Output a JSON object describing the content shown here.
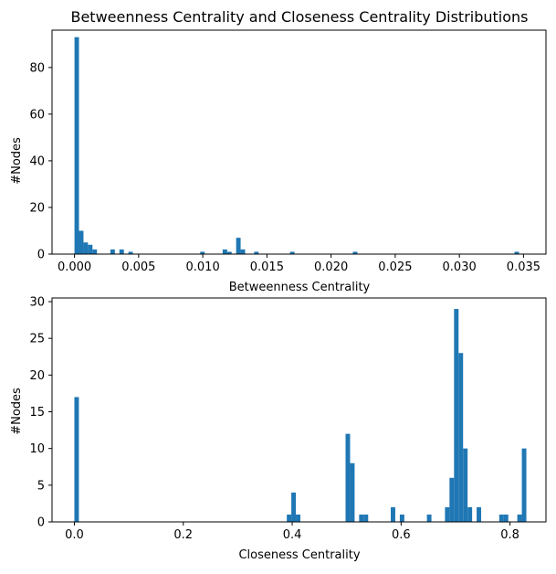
{
  "chart_data": [
    {
      "type": "bar",
      "title": "Betweenness Centrality and Closeness Centrality Distributions",
      "xlabel": "Betweenness Centrality",
      "ylabel": "#Nodes",
      "xlim": [
        -0.00175,
        0.03675
      ],
      "ylim": [
        0,
        96
      ],
      "bin_width": 0.00035,
      "xticks": [
        0.0,
        0.005,
        0.01,
        0.015,
        0.02,
        0.025,
        0.03,
        0.035
      ],
      "xtick_labels": [
        "0.000",
        "0.005",
        "0.010",
        "0.015",
        "0.020",
        "0.025",
        "0.030",
        "0.035"
      ],
      "yticks": [
        0,
        20,
        40,
        60,
        80
      ],
      "ytick_labels": [
        "0",
        "20",
        "40",
        "60",
        "80"
      ],
      "bins": [
        {
          "x": 0.0,
          "count": 93
        },
        {
          "x": 0.00035,
          "count": 10
        },
        {
          "x": 0.0007,
          "count": 5
        },
        {
          "x": 0.00105,
          "count": 4
        },
        {
          "x": 0.0014,
          "count": 2
        },
        {
          "x": 0.0028,
          "count": 2
        },
        {
          "x": 0.0035,
          "count": 2
        },
        {
          "x": 0.0042,
          "count": 1
        },
        {
          "x": 0.0098,
          "count": 1
        },
        {
          "x": 0.01155,
          "count": 2
        },
        {
          "x": 0.0119,
          "count": 1
        },
        {
          "x": 0.0126,
          "count": 7
        },
        {
          "x": 0.01295,
          "count": 2
        },
        {
          "x": 0.014,
          "count": 1
        },
        {
          "x": 0.0168,
          "count": 1
        },
        {
          "x": 0.0217,
          "count": 1
        },
        {
          "x": 0.0343,
          "count": 1
        }
      ],
      "color": "#1f77b4"
    },
    {
      "type": "bar",
      "title": "",
      "xlabel": "Closeness Centrality",
      "ylabel": "#Nodes",
      "xlim": [
        -0.041,
        0.866
      ],
      "ylim": [
        0,
        30.5
      ],
      "bin_width": 0.0083,
      "xticks": [
        0.0,
        0.2,
        0.4,
        0.6,
        0.8
      ],
      "xtick_labels": [
        "0.0",
        "0.2",
        "0.4",
        "0.6",
        "0.8"
      ],
      "yticks": [
        0,
        5,
        10,
        15,
        20,
        25,
        30
      ],
      "ytick_labels": [
        "0",
        "5",
        "10",
        "15",
        "20",
        "25",
        "30"
      ],
      "bins": [
        {
          "x": 0.0,
          "count": 17
        },
        {
          "x": 0.3901,
          "count": 1
        },
        {
          "x": 0.3984,
          "count": 4
        },
        {
          "x": 0.4067,
          "count": 1
        },
        {
          "x": 0.498,
          "count": 12
        },
        {
          "x": 0.5063,
          "count": 8
        },
        {
          "x": 0.5229,
          "count": 1
        },
        {
          "x": 0.5312,
          "count": 1
        },
        {
          "x": 0.581,
          "count": 2
        },
        {
          "x": 0.5976,
          "count": 1
        },
        {
          "x": 0.6474,
          "count": 1
        },
        {
          "x": 0.6806,
          "count": 2
        },
        {
          "x": 0.6889,
          "count": 6
        },
        {
          "x": 0.6972,
          "count": 29
        },
        {
          "x": 0.7055,
          "count": 23
        },
        {
          "x": 0.7138,
          "count": 10
        },
        {
          "x": 0.7221,
          "count": 2
        },
        {
          "x": 0.7387,
          "count": 2
        },
        {
          "x": 0.7802,
          "count": 1
        },
        {
          "x": 0.7885,
          "count": 1
        },
        {
          "x": 0.8134,
          "count": 1
        },
        {
          "x": 0.8217,
          "count": 10
        }
      ],
      "color": "#1f77b4"
    }
  ]
}
